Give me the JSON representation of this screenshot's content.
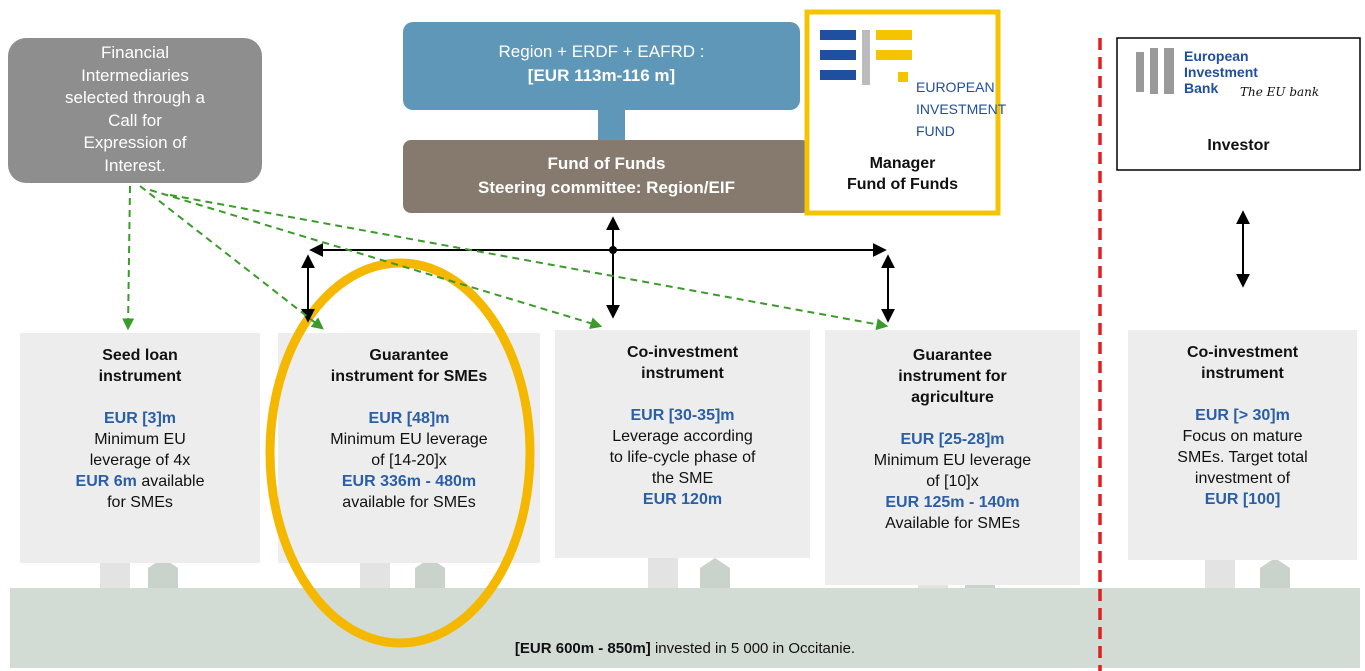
{
  "intermediaries": {
    "lines": [
      "Financial",
      "Intermediaries",
      "selected through a",
      "Call for",
      "Expression of",
      "Interest."
    ]
  },
  "source": {
    "lines": [
      "Region + ERDF + EAFRD :",
      "[EUR 113m-116 m]"
    ]
  },
  "fund_of_funds": {
    "title": "Fund of Funds",
    "committee": "Steering committee: Region/EIF"
  },
  "eif": {
    "logo": [
      "EUROPEAN",
      "INVESTMENT",
      "FUND"
    ],
    "role": [
      "Manager",
      "Fund of Funds"
    ]
  },
  "eib": {
    "logo": [
      "European",
      "Investment",
      "Bank"
    ],
    "tagline": "The EU bank",
    "role": "Investor"
  },
  "instruments": [
    {
      "title": [
        "Seed loan",
        "instrument"
      ],
      "lines": [
        "EUR [3]m",
        "Minimum EU",
        "leverage of 4x",
        "EUR 6m",
        "available",
        "for SMEs"
      ]
    },
    {
      "title": [
        "Guarantee",
        "instrument for SMEs"
      ],
      "lines": [
        "EUR [48]m",
        "Minimum EU leverage",
        "of [14-20]x",
        "EUR 336m - 480m",
        "available for SMEs"
      ]
    },
    {
      "title": [
        "Co-investment",
        "instrument"
      ],
      "lines": [
        "EUR [30-35]m",
        "Leverage according",
        "to life-cycle phase of",
        "the SME",
        "EUR 120m"
      ]
    },
    {
      "title": [
        "Guarantee",
        "instrument for",
        "agriculture"
      ],
      "lines": [
        "EUR [25-28]m",
        "Minimum EU leverage",
        "of [10]x",
        "EUR 125m - 140m",
        "Available for SMEs"
      ]
    },
    {
      "title": [
        "Co-investment",
        "instrument"
      ],
      "lines": [
        "EUR [> 30]m",
        "Focus on mature",
        "SMEs. Target total",
        "investment of",
        "EUR [100]"
      ]
    }
  ],
  "bottom": {
    "amount": "[EUR 600m - 850m]",
    "text": "invested in 5 000 in Occitanie."
  }
}
